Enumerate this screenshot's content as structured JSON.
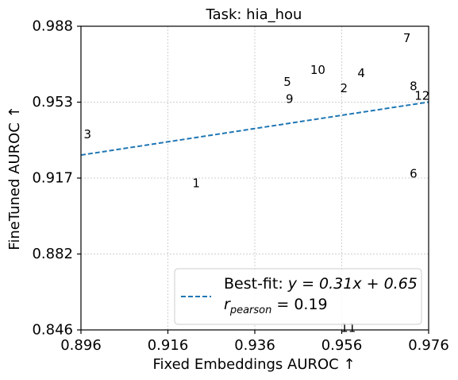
{
  "chart_data": {
    "type": "scatter",
    "title": "Task: hia_hou",
    "xlabel": "Fixed Embeddings AUROC ↑",
    "ylabel": "FineTuned AUROC ↑",
    "xlim": [
      0.896,
      0.976
    ],
    "ylim": [
      0.846,
      0.988
    ],
    "xticks": [
      "0.896",
      "0.916",
      "0.936",
      "0.956",
      "0.976"
    ],
    "yticks": [
      "0.846",
      "0.882",
      "0.917",
      "0.953",
      "0.988"
    ],
    "grid": true,
    "legend_position": "lower-right",
    "points": [
      {
        "label": "1",
        "x": 0.9225,
        "y": 0.9145
      },
      {
        "label": "2",
        "x": 0.9565,
        "y": 0.959
      },
      {
        "label": "3",
        "x": 0.8975,
        "y": 0.9375
      },
      {
        "label": "4",
        "x": 0.9605,
        "y": 0.966
      },
      {
        "label": "5",
        "x": 0.9435,
        "y": 0.962
      },
      {
        "label": "6",
        "x": 0.9725,
        "y": 0.919
      },
      {
        "label": "7",
        "x": 0.971,
        "y": 0.9825
      },
      {
        "label": "8",
        "x": 0.9725,
        "y": 0.96
      },
      {
        "label": "9",
        "x": 0.944,
        "y": 0.954
      },
      {
        "label": "10",
        "x": 0.9505,
        "y": 0.9675
      },
      {
        "label": "11",
        "x": 0.9575,
        "y": 0.847
      },
      {
        "label": "12",
        "x": 0.9745,
        "y": 0.9555
      }
    ],
    "fit": {
      "slope": 0.31,
      "intercept": 0.65,
      "color": "#1f77b4",
      "label_prefix": "Best-fit: ",
      "label_eq": "y = 0.31x + 0.65",
      "r_text": "r",
      "r_sub": "pearson",
      "r_value": " = 0.19"
    }
  }
}
